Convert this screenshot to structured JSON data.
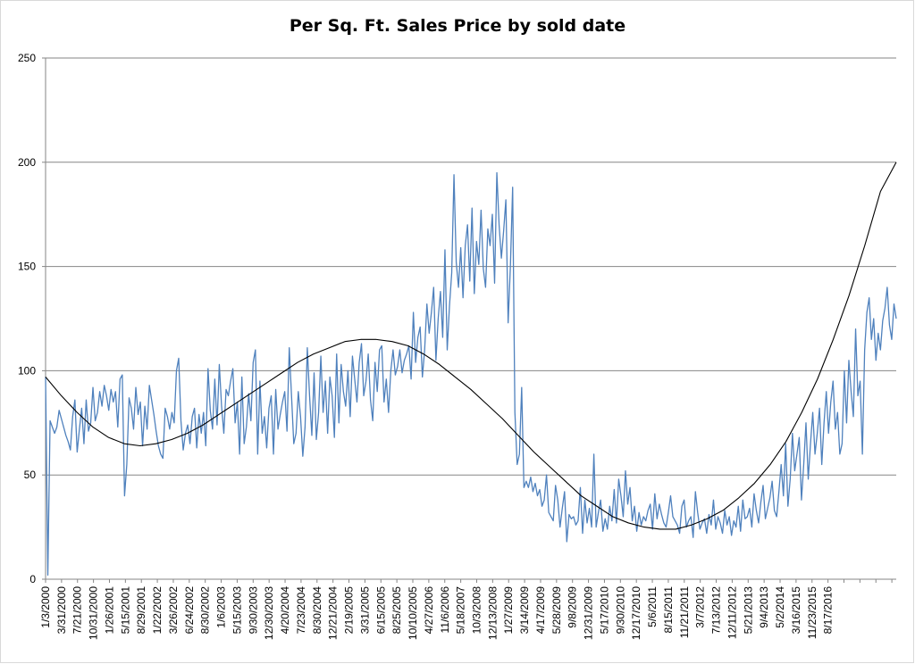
{
  "chart_data": {
    "type": "line",
    "title": "Per Sq. Ft. Sales Price by sold date",
    "xlabel": "",
    "ylabel": "",
    "ylim": [
      0,
      250
    ],
    "yticks": [
      0,
      50,
      100,
      150,
      200,
      250
    ],
    "grid": "horizontal",
    "legend": "none",
    "x_tick_labels": [
      "1/3/2000",
      "3/31/2000",
      "7/21/2000",
      "10/31/2000",
      "1/26/2001",
      "5/15/2001",
      "8/29/2001",
      "1/22/2002",
      "3/26/2002",
      "6/24/2002",
      "8/30/2002",
      "1/6/2003",
      "5/15/2003",
      "9/30/2003",
      "12/30/2003",
      "4/20/2004",
      "7/23/2004",
      "8/30/2004",
      "12/21/2004",
      "2/19/2005",
      "3/31/2005",
      "6/15/2005",
      "8/25/2005",
      "10/10/2005",
      "4/27/2006",
      "11/6/2006",
      "5/18/2007",
      "10/3/2008",
      "12/13/2008",
      "1/27/2009",
      "3/14/2009",
      "4/17/2009",
      "5/28/2009",
      "9/8/2009",
      "12/31/2009",
      "5/17/2010",
      "9/30/2010",
      "12/17/2010",
      "5/6/2011",
      "8/15/2011",
      "11/21/2011",
      "3/7/2012",
      "7/13/2012",
      "12/11/2012",
      "5/21/2013",
      "9/4/2013",
      "5/2/2014",
      "3/16/2015",
      "11/23/2015",
      "8/17/2016"
    ],
    "series": [
      {
        "kind": "data",
        "color": "#4f81bd",
        "values": [
          97,
          2,
          76,
          73,
          70,
          73,
          81,
          77,
          73,
          69,
          66,
          62,
          78,
          86,
          61,
          72,
          82,
          65,
          86,
          71,
          75,
          92,
          76,
          80,
          90,
          83,
          93,
          88,
          81,
          91,
          85,
          90,
          73,
          96,
          98,
          40,
          55,
          87,
          82,
          72,
          92,
          79,
          85,
          64,
          83,
          72,
          93,
          86,
          79,
          71,
          64,
          60,
          58,
          82,
          78,
          72,
          80,
          75,
          100,
          106,
          76,
          62,
          70,
          74,
          65,
          78,
          82,
          63,
          79,
          70,
          80,
          64,
          101,
          81,
          72,
          96,
          74,
          103,
          83,
          70,
          91,
          88,
          95,
          101,
          75,
          85,
          60,
          97,
          65,
          73,
          89,
          76,
          104,
          110,
          60,
          95,
          70,
          78,
          63,
          82,
          88,
          60,
          91,
          72,
          79,
          85,
          90,
          71,
          111,
          88,
          65,
          70,
          90,
          78,
          59,
          73,
          111,
          88,
          69,
          99,
          67,
          80,
          107,
          80,
          95,
          70,
          97,
          88,
          68,
          108,
          75,
          103,
          90,
          83,
          100,
          78,
          107,
          96,
          85,
          104,
          113,
          88,
          95,
          108,
          86,
          76,
          104,
          90,
          110,
          112,
          85,
          96,
          80,
          100,
          110,
          98,
          102,
          110,
          99,
          105,
          108,
          112,
          96,
          128,
          104,
          116,
          121,
          97,
          110,
          132,
          118,
          128,
          140,
          105,
          125,
          138,
          116,
          158,
          110,
          131,
          147,
          194,
          152,
          140,
          159,
          135,
          160,
          170,
          143,
          178,
          137,
          162,
          151,
          177,
          149,
          140,
          168,
          160,
          175,
          142,
          195,
          170,
          154,
          167,
          182,
          123,
          150,
          188,
          80,
          55,
          60,
          92,
          44,
          47,
          44,
          49,
          42,
          46,
          40,
          43,
          35,
          38,
          50,
          32,
          30,
          28,
          45,
          38,
          25,
          34,
          42,
          18,
          31,
          29,
          30,
          26,
          28,
          44,
          22,
          38,
          27,
          34,
          25,
          60,
          25,
          32,
          38,
          23,
          29,
          24,
          35,
          28,
          43,
          27,
          48,
          40,
          30,
          52,
          36,
          44,
          28,
          35,
          23,
          32,
          26,
          30,
          28,
          33,
          36,
          24,
          41,
          29,
          36,
          31,
          27,
          25,
          32,
          40,
          30,
          28,
          26,
          22,
          35,
          38,
          25,
          28,
          30,
          20,
          42,
          32,
          24,
          27,
          29,
          22,
          31,
          26,
          38,
          24,
          30,
          27,
          22,
          33,
          26,
          30,
          21,
          28,
          25,
          35,
          23,
          38,
          29,
          30,
          34,
          25,
          41,
          33,
          27,
          37,
          45,
          29,
          34,
          39,
          47,
          33,
          30,
          42,
          55,
          40,
          65,
          35,
          48,
          70,
          52,
          60,
          68,
          38,
          55,
          75,
          48,
          65,
          80,
          60,
          70,
          82,
          55,
          75,
          90,
          70,
          85,
          95,
          72,
          80,
          60,
          65,
          100,
          75,
          105,
          90,
          78,
          120,
          88,
          95,
          60,
          110,
          128,
          135,
          115,
          125,
          105,
          118,
          110,
          124,
          130,
          140,
          122,
          115,
          132,
          125
        ]
      },
      {
        "kind": "trendline",
        "color": "#000000",
        "values": [
          97,
          88,
          80,
          73,
          68,
          65,
          64,
          65,
          67,
          70,
          74,
          79,
          84,
          89,
          94,
          99,
          104,
          108,
          111,
          114,
          115,
          115,
          114,
          112,
          108,
          103,
          97,
          91,
          84,
          77,
          69,
          61,
          54,
          47,
          40,
          35,
          30,
          27,
          25,
          24,
          24,
          26,
          29,
          33,
          39,
          46,
          55,
          66,
          80,
          96,
          115,
          136,
          160,
          186,
          200
        ]
      }
    ]
  }
}
